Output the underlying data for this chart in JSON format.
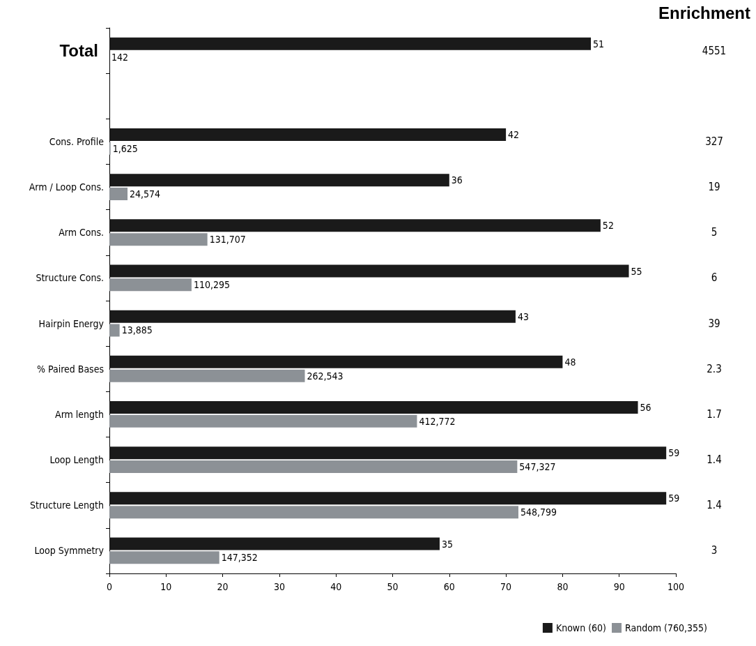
{
  "chart_data": {
    "type": "bar",
    "orientation": "horizontal",
    "categories": [
      "Total",
      null,
      "Cons. Profile",
      "Arm / Loop Cons.",
      "Arm Cons.",
      "Structure Cons.",
      "Hairpin Energy",
      "% Paired Bases",
      "Arm length",
      "Loop Length",
      "Structure Length",
      "Loop Symmetry"
    ],
    "series": [
      {
        "name": "Known (60)",
        "color": "#1a1a1a",
        "values": [
          85,
          null,
          70,
          60,
          86.7,
          91.7,
          71.7,
          80,
          93.3,
          98.3,
          98.3,
          58.3
        ]
      },
      {
        "name": "Random (760,355)",
        "color": "#8c9196",
        "values": [
          0,
          null,
          0.2,
          3.2,
          17.3,
          14.5,
          1.8,
          34.5,
          54.3,
          72,
          72.2,
          19.4
        ]
      }
    ],
    "xlim": [
      0,
      100
    ],
    "xticks": [
      0,
      10,
      20,
      30,
      40,
      50,
      60,
      70,
      80,
      90,
      100
    ],
    "grid": false,
    "legend": "bottom right",
    "annotations": [
      "Enrichment",
      "4551",
      "327",
      "19",
      "5",
      "6",
      "39",
      "2.3",
      "1.7",
      "1.4",
      "1.4",
      "3",
      {
        "text": "51",
        "x": 85,
        "y": "Total"
      },
      {
        "text": "142",
        "x": 0,
        "y": "Total"
      },
      {
        "text": "42",
        "x": 70,
        "y": "Cons. Profile"
      },
      {
        "text": "1,625",
        "x": 0.2,
        "y": "Cons. Profile"
      },
      {
        "text": "36",
        "x": 60,
        "y": "Arm / Loop Cons."
      },
      {
        "text": "24,574",
        "x": 3.2,
        "y": "Arm / Loop Cons."
      },
      {
        "text": "52",
        "x": 86.7,
        "y": "Arm Cons."
      },
      {
        "text": "131,707",
        "x": 17.3,
        "y": "Arm Cons."
      },
      {
        "text": "55",
        "x": 91.7,
        "y": "Structure Cons."
      },
      {
        "text": "110,295",
        "x": 14.5,
        "y": "Structure Cons."
      },
      {
        "text": "43",
        "x": 71.7,
        "y": "Hairpin Energy"
      },
      {
        "text": "13,885",
        "x": 1.8,
        "y": "Hairpin Energy"
      },
      {
        "text": "48",
        "x": 80,
        "y": "% Paired Bases"
      },
      {
        "text": "262,543",
        "x": 34.5,
        "y": "% Paired Bases"
      },
      {
        "text": "56",
        "x": 93.3,
        "y": "Arm length"
      },
      {
        "text": "412,772",
        "x": 54.3,
        "y": "Arm length"
      },
      {
        "text": "59",
        "x": 98.3,
        "y": "Loop Length"
      },
      {
        "text": "547,327",
        "x": 72,
        "y": "Loop Length"
      },
      {
        "text": "59",
        "x": 98.3,
        "y": "Structure Length"
      },
      {
        "text": "548,799",
        "x": 72.2,
        "y": "Structure Length"
      },
      {
        "text": "35",
        "x": 58.3,
        "y": "Loop Symmetry"
      },
      {
        "text": "147,352",
        "x": 19.4,
        "y": "Loop Symmetry"
      }
    ]
  }
}
